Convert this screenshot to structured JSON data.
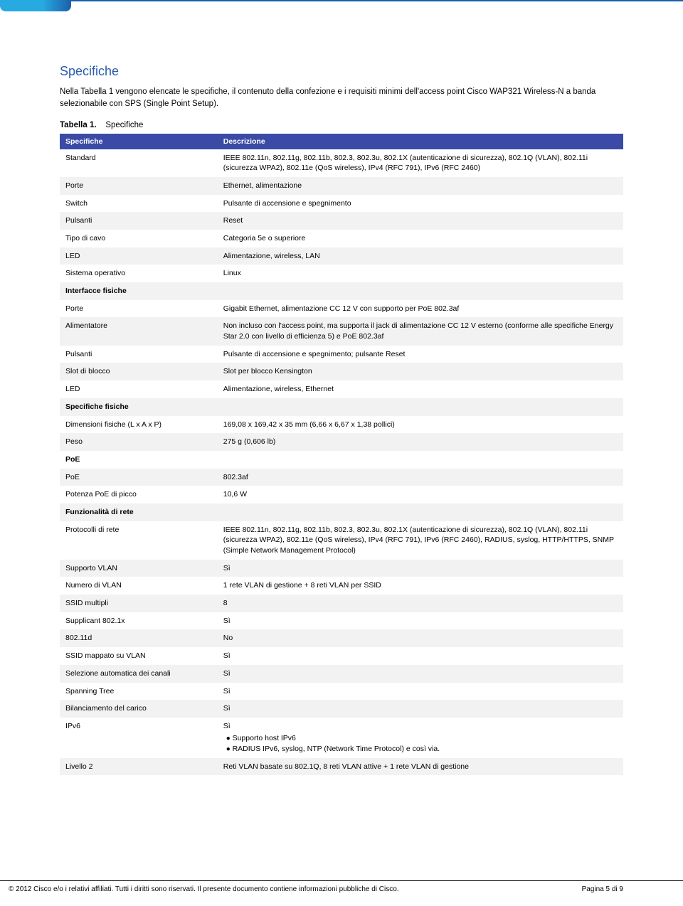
{
  "colors": {
    "heading": "#2a5caa",
    "table_header_bg": "#3a4aa6",
    "table_header_fg": "#ffffff",
    "row_odd_bg": "#f2f2f2",
    "row_even_bg": "#ffffff",
    "accent_light": "#27a9e1",
    "accent_dark": "#1b5faa"
  },
  "title": "Specifiche",
  "intro": "Nella Tabella 1 vengono elencate le specifiche, il contenuto della confezione e i requisiti minimi dell'access point Cisco WAP321 Wireless-N a banda selezionabile con SPS (Single Point Setup).",
  "caption_label": "Tabella 1.",
  "caption_text": "Specifiche",
  "headers": {
    "col1": "Specifiche",
    "col2": "Descrizione"
  },
  "rows": [
    {
      "label": "Standard",
      "value": "IEEE 802.11n, 802.11g, 802.11b, 802.3, 802.3u, 802.1X (autenticazione di sicurezza), 802.1Q (VLAN), 802.11i (sicurezza WPA2), 802.11e (QoS wireless), IPv4 (RFC 791), IPv6 (RFC 2460)"
    },
    {
      "label": "Porte",
      "value": "Ethernet, alimentazione"
    },
    {
      "label": "Switch",
      "value": "Pulsante di accensione e spegnimento"
    },
    {
      "label": "Pulsanti",
      "value": "Reset"
    },
    {
      "label": "Tipo di cavo",
      "value": "Categoria 5e o superiore"
    },
    {
      "label": "LED",
      "value": "Alimentazione, wireless, LAN"
    },
    {
      "label": "Sistema operativo",
      "value": "Linux"
    },
    {
      "label": "Interfacce fisiche",
      "section": true
    },
    {
      "label": "Porte",
      "value": "Gigabit Ethernet, alimentazione CC 12 V con supporto per PoE 802.3af"
    },
    {
      "label": "Alimentatore",
      "value": "Non incluso con l'access point, ma supporta il  jack di alimentazione CC 12 V esterno (conforme alle specifiche Energy Star 2.0 con livello di efficienza 5) e PoE 802.3af"
    },
    {
      "label": "Pulsanti",
      "value": "Pulsante di accensione e spegnimento; pulsante Reset"
    },
    {
      "label": "Slot di blocco",
      "value": "Slot per blocco Kensington"
    },
    {
      "label": "LED",
      "value": "Alimentazione, wireless, Ethernet"
    },
    {
      "label": "Specifiche fisiche",
      "section": true
    },
    {
      "label": "Dimensioni fisiche (L x A x P)",
      "value": "169,08 x 169,42 x 35 mm (6,66 x 6,67 x 1,38 pollici)"
    },
    {
      "label": "Peso",
      "value": "275 g (0,606 lb)"
    },
    {
      "label": "PoE",
      "section": true
    },
    {
      "label": "PoE",
      "value": "802.3af"
    },
    {
      "label": "Potenza PoE di picco",
      "value": "10,6 W"
    },
    {
      "label": "Funzionalità di rete",
      "section": true
    },
    {
      "label": "Protocolli di rete",
      "value": "IEEE 802.11n, 802.11g, 802.11b, 802.3, 802.3u, 802.1X (autenticazione di sicurezza), 802.1Q (VLAN), 802.11i (sicurezza WPA2), 802.11e (QoS wireless), IPv4 (RFC 791), IPv6 (RFC 2460), RADIUS, syslog, HTTP/HTTPS, SNMP (Simple Network Management Protocol)"
    },
    {
      "label": "Supporto VLAN",
      "value": "Sì"
    },
    {
      "label": "Numero di VLAN",
      "value": "1 rete VLAN di gestione + 8 reti VLAN per SSID"
    },
    {
      "label": "SSID multipli",
      "value": "8"
    },
    {
      "label": "Supplicant 802.1x",
      "value": "Sì"
    },
    {
      "label": "802.11d",
      "value": "No"
    },
    {
      "label": "SSID mappato su VLAN",
      "value": "Sì"
    },
    {
      "label": "Selezione automatica dei canali",
      "value": "Sì"
    },
    {
      "label": "Spanning Tree",
      "value": "Sì"
    },
    {
      "label": "Bilanciamento del carico",
      "value": "Sì"
    },
    {
      "label": "IPv6",
      "value": "Sì",
      "bullets": [
        "Supporto host IPv6",
        "RADIUS IPv6, syslog, NTP (Network Time Protocol) e così via."
      ]
    },
    {
      "label": "Livello 2",
      "value": "Reti VLAN basate su 802.1Q, 8 reti VLAN attive + 1 rete VLAN di gestione"
    }
  ],
  "footer": {
    "left": "© 2012 Cisco e/o i relativi affiliati. Tutti i diritti sono riservati. Il presente documento contiene informazioni pubbliche di Cisco.",
    "right": "Pagina 5 di 9"
  }
}
